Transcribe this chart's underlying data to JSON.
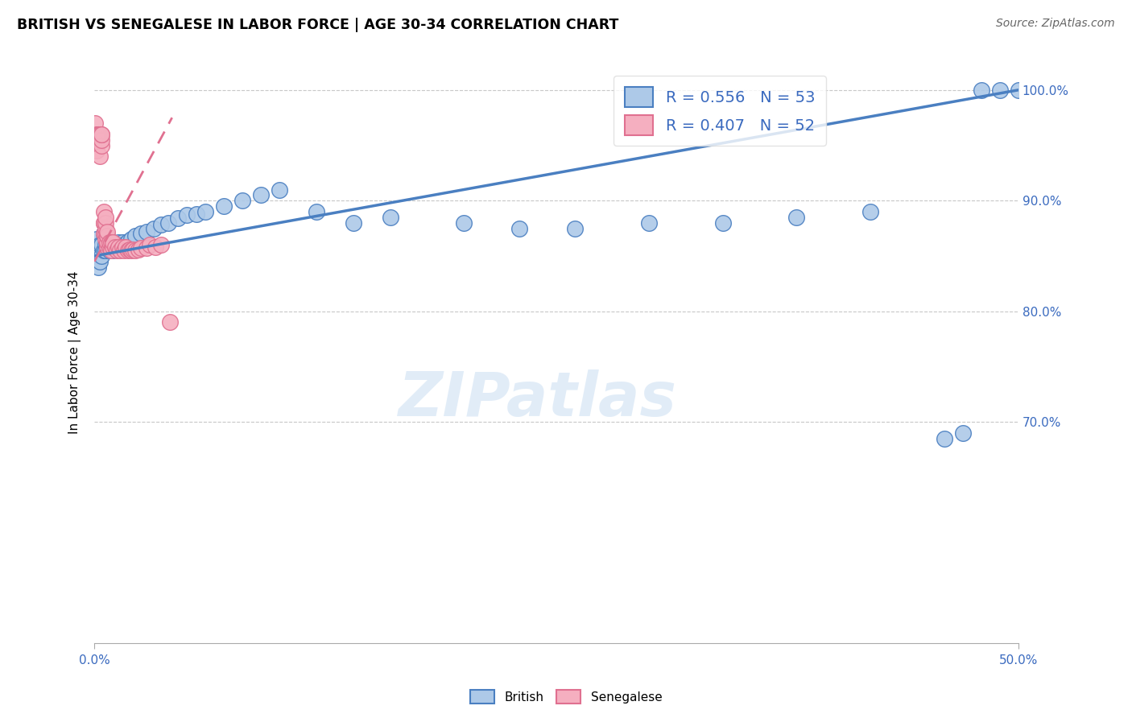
{
  "title": "BRITISH VS SENEGALESE IN LABOR FORCE | AGE 30-34 CORRELATION CHART",
  "source": "Source: ZipAtlas.com",
  "ylabel": "In Labor Force | Age 30-34",
  "xlim": [
    0.0,
    0.5
  ],
  "ylim": [
    0.5,
    1.025
  ],
  "british_R": 0.556,
  "british_N": 53,
  "senegalese_R": 0.407,
  "senegalese_N": 52,
  "british_color": "#adc9e8",
  "senegalese_color": "#f5afc0",
  "british_line_color": "#4a7fc1",
  "senegalese_line_color": "#e07090",
  "watermark_text": "ZIPatlas",
  "british_x": [
    0.001,
    0.001,
    0.002,
    0.002,
    0.003,
    0.003,
    0.004,
    0.004,
    0.005,
    0.005,
    0.006,
    0.006,
    0.007,
    0.008,
    0.009,
    0.01,
    0.011,
    0.012,
    0.013,
    0.014,
    0.015,
    0.016,
    0.018,
    0.02,
    0.022,
    0.025,
    0.028,
    0.032,
    0.036,
    0.04,
    0.045,
    0.05,
    0.055,
    0.06,
    0.07,
    0.08,
    0.09,
    0.1,
    0.12,
    0.14,
    0.16,
    0.2,
    0.23,
    0.26,
    0.3,
    0.34,
    0.38,
    0.42,
    0.46,
    0.47,
    0.48,
    0.49,
    0.5
  ],
  "british_y": [
    0.865,
    0.85,
    0.855,
    0.84,
    0.86,
    0.845,
    0.86,
    0.85,
    0.87,
    0.855,
    0.86,
    0.855,
    0.86,
    0.855,
    0.86,
    0.855,
    0.858,
    0.86,
    0.862,
    0.86,
    0.862,
    0.86,
    0.863,
    0.865,
    0.868,
    0.87,
    0.872,
    0.875,
    0.878,
    0.88,
    0.884,
    0.887,
    0.888,
    0.89,
    0.895,
    0.9,
    0.905,
    0.91,
    0.89,
    0.88,
    0.885,
    0.88,
    0.875,
    0.875,
    0.88,
    0.88,
    0.885,
    0.89,
    0.685,
    0.69,
    1.0,
    1.0,
    1.0
  ],
  "senegalese_x": [
    0.0005,
    0.001,
    0.001,
    0.002,
    0.002,
    0.002,
    0.003,
    0.003,
    0.003,
    0.003,
    0.004,
    0.004,
    0.004,
    0.004,
    0.005,
    0.005,
    0.005,
    0.005,
    0.006,
    0.006,
    0.006,
    0.006,
    0.006,
    0.007,
    0.007,
    0.007,
    0.007,
    0.008,
    0.008,
    0.009,
    0.009,
    0.01,
    0.01,
    0.011,
    0.012,
    0.013,
    0.014,
    0.015,
    0.016,
    0.017,
    0.018,
    0.019,
    0.02,
    0.021,
    0.022,
    0.024,
    0.025,
    0.028,
    0.03,
    0.033,
    0.036,
    0.041
  ],
  "senegalese_y": [
    0.97,
    0.96,
    0.945,
    0.96,
    0.96,
    0.96,
    0.94,
    0.96,
    0.96,
    0.96,
    0.95,
    0.955,
    0.96,
    0.96,
    0.87,
    0.88,
    0.88,
    0.89,
    0.865,
    0.87,
    0.875,
    0.88,
    0.885,
    0.858,
    0.862,
    0.868,
    0.872,
    0.858,
    0.862,
    0.855,
    0.862,
    0.858,
    0.862,
    0.858,
    0.855,
    0.858,
    0.855,
    0.858,
    0.855,
    0.858,
    0.855,
    0.856,
    0.855,
    0.856,
    0.855,
    0.856,
    0.857,
    0.857,
    0.86,
    0.858,
    0.86,
    0.79
  ],
  "british_line_x": [
    0.0,
    0.5
  ],
  "british_line_y": [
    0.85,
    1.0
  ],
  "senegalese_line_x": [
    0.0,
    0.042
  ],
  "senegalese_line_y": [
    0.845,
    0.975
  ]
}
